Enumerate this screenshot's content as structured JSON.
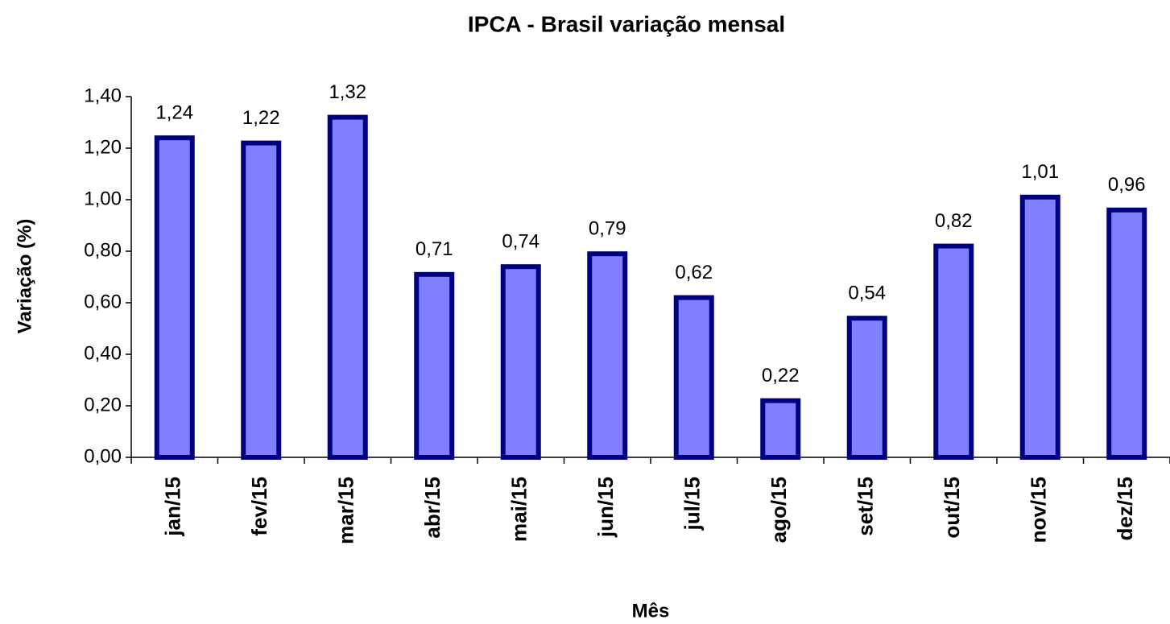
{
  "chart_data": {
    "type": "bar",
    "title": "IPCA - Brasil variação mensal",
    "x_label": "Mês",
    "y_label": "Variação (%)",
    "categories": [
      "jan/15",
      "fev/15",
      "mar/15",
      "abr/15",
      "mai/15",
      "jun/15",
      "jul/15",
      "ago/15",
      "set/15",
      "out/15",
      "nov/15",
      "dez/15"
    ],
    "values": [
      1.24,
      1.22,
      1.32,
      0.71,
      0.74,
      0.79,
      0.62,
      0.22,
      0.54,
      0.82,
      1.01,
      0.96
    ],
    "value_labels": [
      "1,24",
      "1,22",
      "1,32",
      "0,71",
      "0,74",
      "0,79",
      "0,62",
      "0,22",
      "0,54",
      "0,82",
      "1,01",
      "0,96"
    ],
    "color": "#8080ff",
    "edge_color": "#000080",
    "ylim": [
      0,
      1.4
    ],
    "yticks": [
      {
        "value": 0,
        "label": "0,00"
      },
      {
        "value": 0.2,
        "label": "0,20"
      },
      {
        "value": 0.4,
        "label": "0,40"
      },
      {
        "value": 0.6,
        "label": "0,60"
      },
      {
        "value": 0.8,
        "label": "0,80"
      },
      {
        "value": 1.0,
        "label": "1,00"
      },
      {
        "value": 1.2,
        "label": "1,20"
      },
      {
        "value": 1.4,
        "label": "1,40"
      }
    ],
    "grid": false
  }
}
